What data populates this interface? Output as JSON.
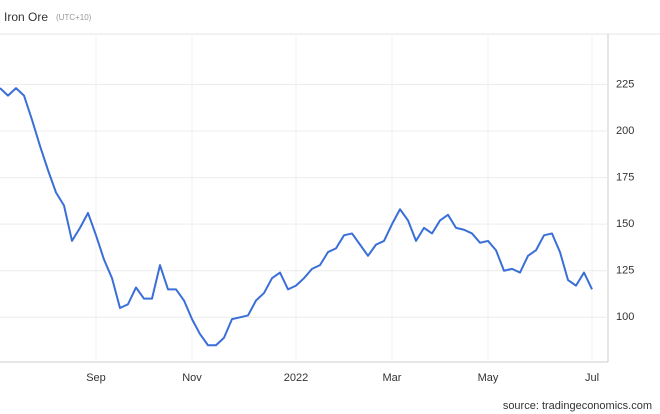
{
  "chart_data": {
    "type": "line",
    "title": "Iron Ore",
    "subtitle": "(UTC+10)",
    "source": "source: tradingeconomics.com",
    "categories": [
      null,
      null,
      null,
      null,
      null,
      null,
      null,
      null,
      null,
      null,
      null,
      null,
      "Sep",
      null,
      null,
      null,
      null,
      null,
      null,
      null,
      null,
      null,
      null,
      null,
      "Nov",
      null,
      null,
      null,
      null,
      null,
      null,
      null,
      null,
      null,
      null,
      null,
      null,
      "2022",
      null,
      null,
      null,
      null,
      null,
      null,
      null,
      null,
      null,
      null,
      null,
      "Mar",
      null,
      null,
      null,
      null,
      null,
      null,
      null,
      null,
      null,
      null,
      null,
      "May",
      null,
      null,
      null,
      null,
      null,
      null,
      null,
      null,
      null,
      null,
      null,
      null,
      "Jul"
    ],
    "series": [
      {
        "name": "Iron Ore",
        "color": "#3a6fd8",
        "values": [
          223,
          219,
          223,
          219,
          206,
          192,
          179,
          167,
          160,
          141,
          148,
          156,
          144,
          131,
          121,
          105,
          107,
          116,
          110,
          110,
          128,
          115,
          115,
          109,
          99,
          91,
          85,
          85,
          89,
          99,
          100,
          101,
          109,
          113,
          121,
          124,
          115,
          117,
          121,
          126,
          128,
          135,
          137,
          144,
          145,
          139,
          133,
          139,
          141,
          150,
          158,
          152,
          141,
          148,
          145,
          152,
          155,
          148,
          147,
          145,
          140,
          141,
          136,
          125,
          126,
          124,
          133,
          136,
          144,
          145,
          135,
          120,
          117,
          124,
          115
        ]
      }
    ],
    "ylim": [
      76,
      251
    ],
    "yticks": [
      100,
      125,
      150,
      175,
      200,
      225
    ],
    "grid": true
  }
}
